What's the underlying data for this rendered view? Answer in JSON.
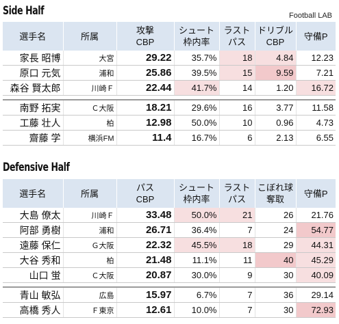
{
  "source": "Football LAB",
  "side": {
    "title": "Side Half",
    "headers": [
      "選手名",
      "所属",
      "攻撃\nCBP",
      "シュート\n枠内率",
      "ラスト\nパス",
      "ドリブル\nCBP",
      "守備P"
    ],
    "rows_top": [
      {
        "name": "家長 昭博",
        "team": "大宮",
        "cbp": "29.22",
        "shot": "35.7%",
        "c5": "18",
        "c6": "4.84",
        "def": "12.23"
      },
      {
        "name": "原口 元気",
        "team": "浦和",
        "cbp": "25.86",
        "shot": "39.5%",
        "c5": "15",
        "c6": "9.59",
        "def": "7.21"
      },
      {
        "name": "森谷 賢太郎",
        "team": "川崎Ｆ",
        "cbp": "22.44",
        "shot": "41.7%",
        "c5": "14",
        "c6": "1.20",
        "def": "16.72"
      }
    ],
    "rows_bottom": [
      {
        "name": "南野 拓実",
        "team": "Ｃ大阪",
        "cbp": "18.21",
        "shot": "29.6%",
        "c5": "16",
        "c6": "3.77",
        "def": "11.58"
      },
      {
        "name": "工藤 壮人",
        "team": "柏",
        "cbp": "12.98",
        "shot": "50.0%",
        "c5": "10",
        "c6": "0.96",
        "def": "4.73"
      },
      {
        "name": "齋藤 学",
        "team": "横浜FM",
        "cbp": "11.4",
        "shot": "16.7%",
        "c5": "6",
        "c6": "2.13",
        "def": "6.55"
      }
    ]
  },
  "defensive": {
    "title": "Defensive Half",
    "headers": [
      "選手名",
      "所属",
      "パス\nCBP",
      "シュート\n枠内率",
      "ラスト\nパス",
      "こぼれ球\n奪取",
      "守備P"
    ],
    "rows_top": [
      {
        "name": "大島 僚太",
        "team": "川崎Ｆ",
        "cbp": "33.48",
        "shot": "50.0%",
        "c5": "21",
        "c6": "26",
        "def": "21.76"
      },
      {
        "name": "阿部 勇樹",
        "team": "浦和",
        "cbp": "26.71",
        "shot": "36.4%",
        "c5": "7",
        "c6": "24",
        "def": "54.77"
      },
      {
        "name": "遠藤 保仁",
        "team": "Ｇ大阪",
        "cbp": "22.32",
        "shot": "45.5%",
        "c5": "18",
        "c6": "29",
        "def": "44.31"
      },
      {
        "name": "大谷 秀和",
        "team": "柏",
        "cbp": "21.48",
        "shot": "11.1%",
        "c5": "11",
        "c6": "40",
        "def": "45.29"
      },
      {
        "name": "山口 蛍",
        "team": "Ｃ大阪",
        "cbp": "20.87",
        "shot": "30.0%",
        "c5": "9",
        "c6": "30",
        "def": "40.09"
      }
    ],
    "rows_bottom": [
      {
        "name": "青山 敏弘",
        "team": "広島",
        "cbp": "15.97",
        "shot": "6.7%",
        "c5": "7",
        "c6": "36",
        "def": "29.14"
      },
      {
        "name": "高橋 秀人",
        "team": "Ｆ東京",
        "cbp": "12.61",
        "shot": "10.0%",
        "c5": "7",
        "c6": "30",
        "def": "72.93"
      }
    ]
  }
}
